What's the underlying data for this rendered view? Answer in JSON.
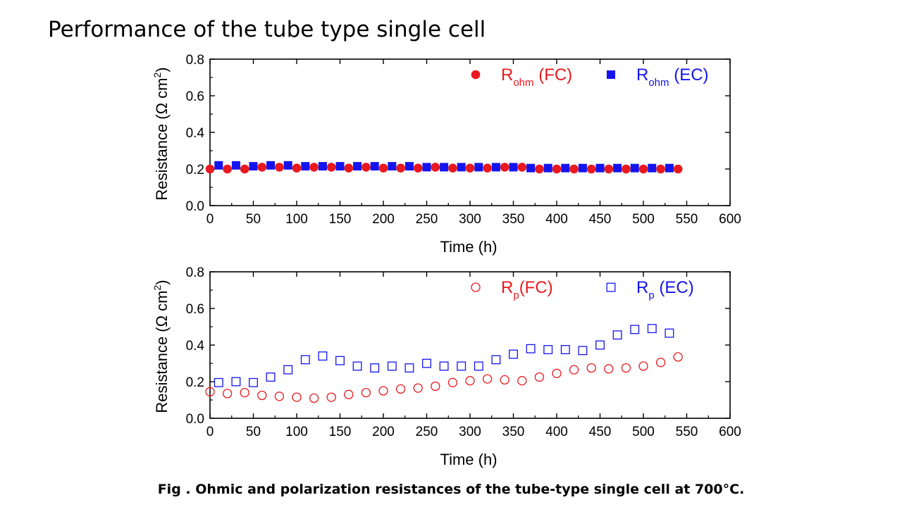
{
  "page": {
    "title": "Performance of the tube type single cell",
    "caption": "Fig . Ohmic and polarization resistances of the tube-type single cell at 700°C."
  },
  "colors": {
    "red": "#e8191f",
    "blue": "#1414ee",
    "axis": "#000000"
  },
  "chart_data": [
    {
      "type": "scatter",
      "xlabel": "Time (h)",
      "ylabel_main": "Resistance (Ω cm",
      "ylabel_sup": "2",
      "ylabel_close": ")",
      "xlim": [
        0,
        600
      ],
      "ylim": [
        0,
        0.8
      ],
      "xticks": [
        0,
        50,
        100,
        150,
        200,
        250,
        300,
        350,
        400,
        450,
        500,
        550,
        600
      ],
      "xtick_labels": [
        "0",
        "50",
        "100",
        "150",
        "200",
        "250",
        "300",
        "350",
        "400",
        "450",
        "500",
        "550",
        "600"
      ],
      "yticks": [
        0,
        0.2,
        0.4,
        0.6,
        0.8
      ],
      "ytick_labels": [
        "0.0",
        "0.2",
        "0.4",
        "0.6",
        "0.8"
      ],
      "legend_position": "top-right",
      "series": [
        {
          "name_main": "R",
          "name_sub": "ohm",
          "name_tail": " (FC)",
          "marker": "filled-circle",
          "color": "#e8191f",
          "x": [
            0,
            20,
            40,
            60,
            80,
            100,
            120,
            140,
            160,
            180,
            200,
            220,
            240,
            260,
            280,
            300,
            320,
            340,
            360,
            380,
            400,
            420,
            440,
            460,
            480,
            500,
            520,
            540
          ],
          "values": [
            0.2,
            0.2,
            0.2,
            0.21,
            0.21,
            0.205,
            0.21,
            0.21,
            0.205,
            0.21,
            0.205,
            0.205,
            0.205,
            0.21,
            0.205,
            0.205,
            0.205,
            0.21,
            0.21,
            0.2,
            0.2,
            0.2,
            0.2,
            0.2,
            0.2,
            0.2,
            0.2,
            0.2
          ]
        },
        {
          "name_main": "R",
          "name_sub": "ohm",
          "name_tail": " (EC)",
          "marker": "filled-square",
          "color": "#1414ee",
          "x": [
            10,
            30,
            50,
            70,
            90,
            110,
            130,
            150,
            170,
            190,
            210,
            230,
            250,
            270,
            290,
            310,
            330,
            350,
            370,
            390,
            410,
            430,
            450,
            470,
            490,
            510,
            530
          ],
          "values": [
            0.22,
            0.22,
            0.215,
            0.22,
            0.22,
            0.215,
            0.215,
            0.215,
            0.215,
            0.215,
            0.215,
            0.215,
            0.21,
            0.21,
            0.21,
            0.21,
            0.21,
            0.21,
            0.205,
            0.205,
            0.205,
            0.205,
            0.205,
            0.205,
            0.205,
            0.205,
            0.205
          ]
        }
      ]
    },
    {
      "type": "scatter",
      "xlabel": "Time (h)",
      "ylabel_main": "Resistance (Ω cm",
      "ylabel_sup": "2",
      "ylabel_close": ")",
      "xlim": [
        0,
        600
      ],
      "ylim": [
        0,
        0.8
      ],
      "xticks": [
        0,
        50,
        100,
        150,
        200,
        250,
        300,
        350,
        400,
        450,
        500,
        550,
        600
      ],
      "xtick_labels": [
        "0",
        "50",
        "100",
        "150",
        "200",
        "250",
        "300",
        "350",
        "400",
        "450",
        "500",
        "550",
        "600"
      ],
      "yticks": [
        0,
        0.2,
        0.4,
        0.6,
        0.8
      ],
      "ytick_labels": [
        "0.0",
        "0.2",
        "0.4",
        "0.6",
        "0.8"
      ],
      "legend_position": "top-right",
      "series": [
        {
          "name_main": "R",
          "name_sub": "p",
          "name_tail": "(FC)",
          "marker": "open-circle",
          "color": "#e8191f",
          "x": [
            0,
            20,
            40,
            60,
            80,
            100,
            120,
            140,
            160,
            180,
            200,
            220,
            240,
            260,
            280,
            300,
            320,
            340,
            360,
            380,
            400,
            420,
            440,
            460,
            480,
            500,
            520,
            540
          ],
          "values": [
            0.145,
            0.135,
            0.14,
            0.125,
            0.12,
            0.115,
            0.11,
            0.115,
            0.13,
            0.14,
            0.15,
            0.16,
            0.165,
            0.175,
            0.195,
            0.205,
            0.215,
            0.21,
            0.205,
            0.225,
            0.245,
            0.265,
            0.275,
            0.27,
            0.275,
            0.285,
            0.305,
            0.335
          ]
        },
        {
          "name_main": "R",
          "name_sub": "p",
          "name_tail": " (EC)",
          "marker": "open-square",
          "color": "#1414ee",
          "x": [
            10,
            30,
            50,
            70,
            90,
            110,
            130,
            150,
            170,
            190,
            210,
            230,
            250,
            270,
            290,
            310,
            330,
            350,
            370,
            390,
            410,
            430,
            450,
            470,
            490,
            510,
            530
          ],
          "values": [
            0.195,
            0.2,
            0.195,
            0.225,
            0.265,
            0.32,
            0.34,
            0.315,
            0.285,
            0.275,
            0.285,
            0.275,
            0.3,
            0.285,
            0.285,
            0.285,
            0.32,
            0.35,
            0.38,
            0.375,
            0.375,
            0.37,
            0.4,
            0.455,
            0.485,
            0.49,
            0.465
          ]
        }
      ]
    }
  ]
}
